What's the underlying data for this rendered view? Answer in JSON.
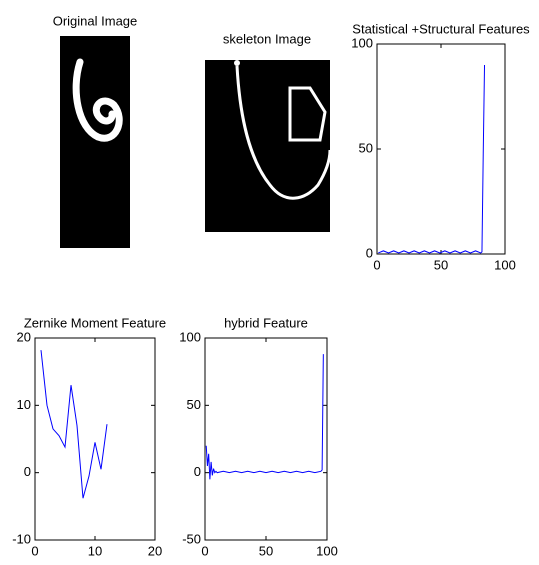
{
  "chart_data": [
    {
      "type": "image",
      "title": "Original Image"
    },
    {
      "type": "image",
      "title": "skeleton Image"
    },
    {
      "type": "line",
      "title": "Statistical +Structural Features",
      "x": [
        1,
        5,
        9,
        13,
        17,
        21,
        25,
        29,
        33,
        37,
        41,
        45,
        49,
        53,
        57,
        61,
        65,
        69,
        73,
        77,
        81,
        82,
        83,
        84
      ],
      "values": [
        0.5,
        1.5,
        0.5,
        1.5,
        0.5,
        1.5,
        0.5,
        1.5,
        0.5,
        1.5,
        0.5,
        1.5,
        0.5,
        1.5,
        0.5,
        1.5,
        0.5,
        1.5,
        0.5,
        1.5,
        0.5,
        1,
        48,
        90
      ],
      "color": "#0000ff",
      "xlim": [
        0,
        100
      ],
      "xticks": [
        0,
        50,
        100
      ],
      "ylim": [
        0,
        100
      ],
      "yticks": [
        0,
        50,
        100
      ]
    },
    {
      "type": "line",
      "title": "Zernike Moment Feature",
      "x": [
        1,
        2,
        3,
        4,
        5,
        6,
        7,
        8,
        9,
        10,
        11,
        12
      ],
      "values": [
        18.2,
        10,
        6.5,
        5.5,
        3.8,
        13,
        7,
        -3.8,
        -0.5,
        4.5,
        0.5,
        7.2
      ],
      "color": "#0000ff",
      "xlim": [
        0,
        20
      ],
      "xticks": [
        0,
        10,
        20
      ],
      "ylim": [
        -10,
        20
      ],
      "yticks": [
        -10,
        0,
        10,
        20
      ]
    },
    {
      "type": "line",
      "title": "hybrid Feature",
      "x": [
        1,
        2,
        3,
        4,
        5,
        6,
        7,
        8,
        9,
        10,
        15,
        20,
        25,
        30,
        35,
        40,
        45,
        50,
        55,
        60,
        65,
        70,
        75,
        80,
        85,
        90,
        95,
        96,
        97
      ],
      "values": [
        20,
        5,
        14,
        -5,
        8,
        -2,
        3,
        0,
        1,
        0,
        1,
        0,
        1,
        0,
        1,
        0,
        1,
        0,
        1,
        0,
        1,
        0,
        1,
        0,
        1,
        0,
        1,
        2,
        88
      ],
      "color": "#0000ff",
      "xlim": [
        0,
        100
      ],
      "xticks": [
        0,
        50,
        100
      ],
      "ylim": [
        -50,
        100
      ],
      "yticks": [
        -50,
        0,
        50,
        100
      ]
    }
  ]
}
